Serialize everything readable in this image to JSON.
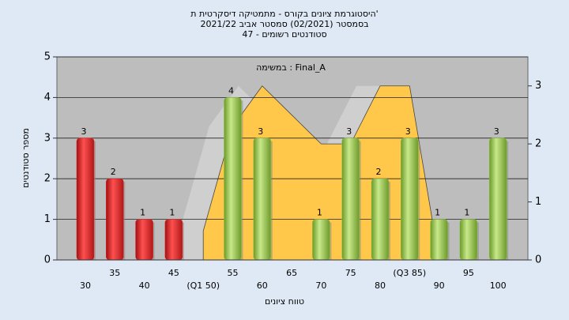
{
  "chart_data": {
    "type": "bar",
    "title": [
      "היסטוגרמת ציונים בקורס - מתמטיקה דיסקרטית ת'",
      "בסמסטר (02/2021)  סמסטר אביב 2021/22",
      "סטודנטים רשומים - 47"
    ],
    "annotation": "במשימה : Final_A",
    "x_label": "טווח ציונים",
    "y_label": "מספר סטודנטים",
    "categories": [
      "30",
      "35",
      "40",
      "45",
      "(Q1 50)",
      "55",
      "60",
      "65",
      "70",
      "75",
      "80",
      "(Q3 85)",
      "90",
      "95",
      "100"
    ],
    "series": [
      {
        "type": "bar",
        "colors": [
          "#e02020",
          "#e02020",
          "#e02020",
          "#e02020",
          null,
          "#8fc040",
          "#8fc040",
          null,
          "#8fc040",
          "#8fc040",
          "#8fc040",
          "#8fc040",
          "#8fc040",
          "#8fc040",
          "#8fc040"
        ],
        "values": [
          3,
          2,
          1,
          1,
          null,
          4,
          3,
          null,
          1,
          3,
          2,
          3,
          1,
          1,
          3
        ]
      },
      {
        "type": "area",
        "axis": "y2",
        "color": "#ffc84a",
        "values": [
          null,
          null,
          null,
          null,
          0.5,
          2.3,
          3,
          2.5,
          2,
          2,
          3,
          3,
          0,
          null,
          null
        ]
      }
    ],
    "ylim": [
      0,
      5
    ],
    "yticks": [
      0,
      1,
      2,
      3,
      4,
      5
    ],
    "y2lim": [
      0,
      3.5
    ],
    "y2ticks": [
      0,
      1,
      2,
      3
    ],
    "grid": true
  }
}
